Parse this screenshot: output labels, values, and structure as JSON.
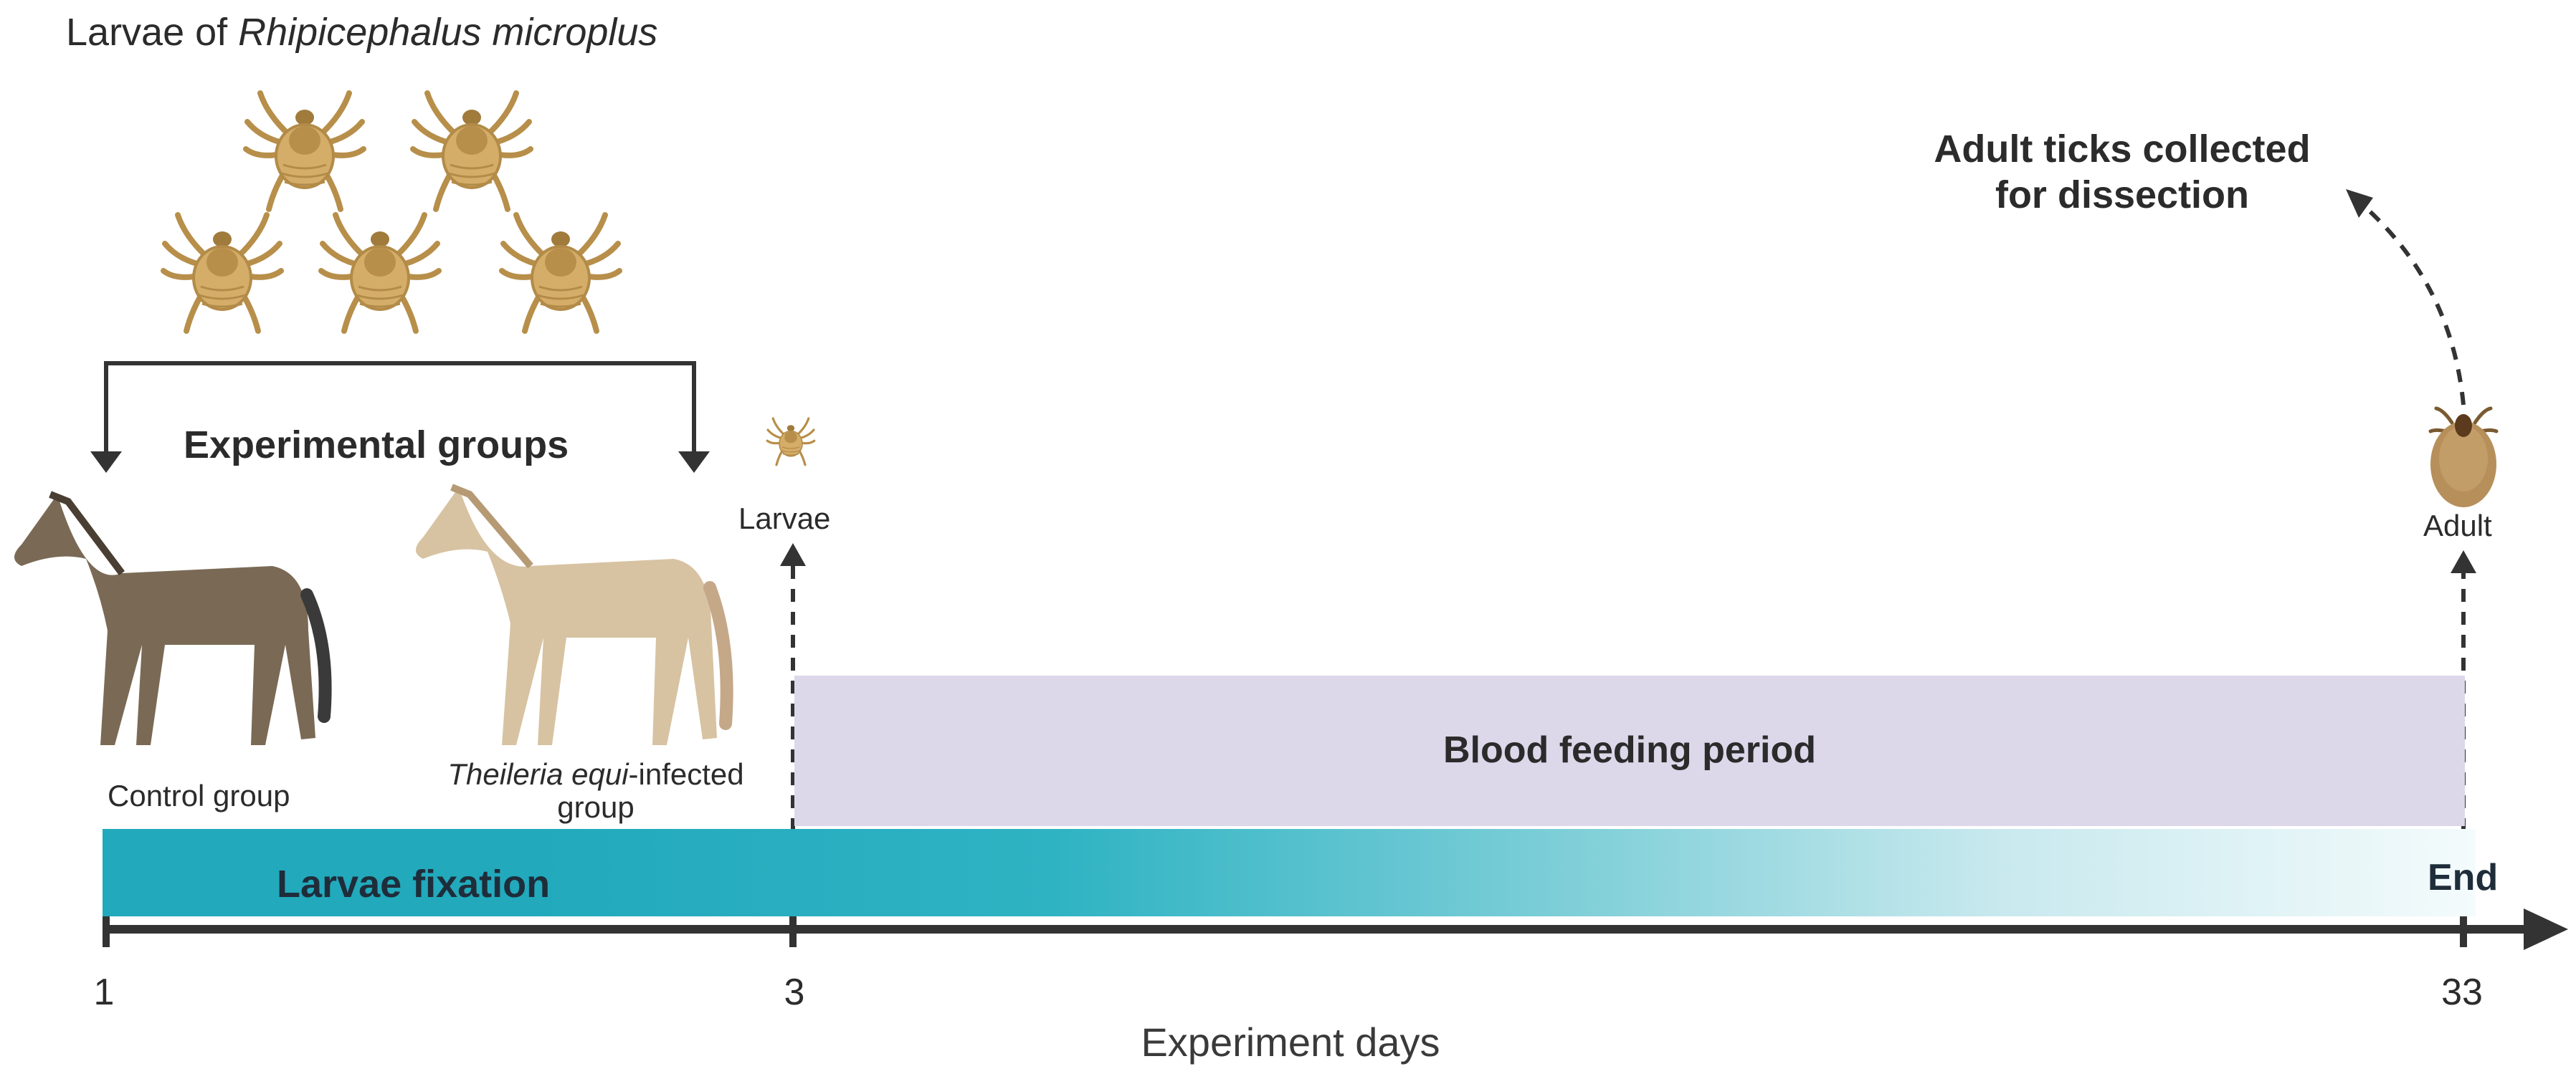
{
  "title": {
    "prefix": "Larvae of ",
    "species": "Rhipicephalus microplus"
  },
  "groups": {
    "heading": "Experimental groups",
    "control": "Control group",
    "infected_italic": "Theileria equi",
    "infected_rest": "-infected",
    "infected_line2": "group"
  },
  "stages": {
    "larvae": "Larvae",
    "adult": "Adult",
    "collected_line1": "Adult ticks collected",
    "collected_line2": "for dissection"
  },
  "periods": {
    "blood_feeding": "Blood feeding period",
    "larvae_fixation": "Larvae fixation",
    "end": "End"
  },
  "axis": {
    "label": "Experiment days",
    "ticks": [
      "1",
      "3",
      "33"
    ]
  },
  "colors": {
    "fixation_start": "#22a9bc",
    "fixation_end": "#f4fbfc",
    "feeding_band": "#dcd8ea",
    "tick_body": "#c9a35c",
    "control_horse": "#7a6a55",
    "infected_horse": "#d7c3a2",
    "adult_tick": "#b68f5a"
  }
}
